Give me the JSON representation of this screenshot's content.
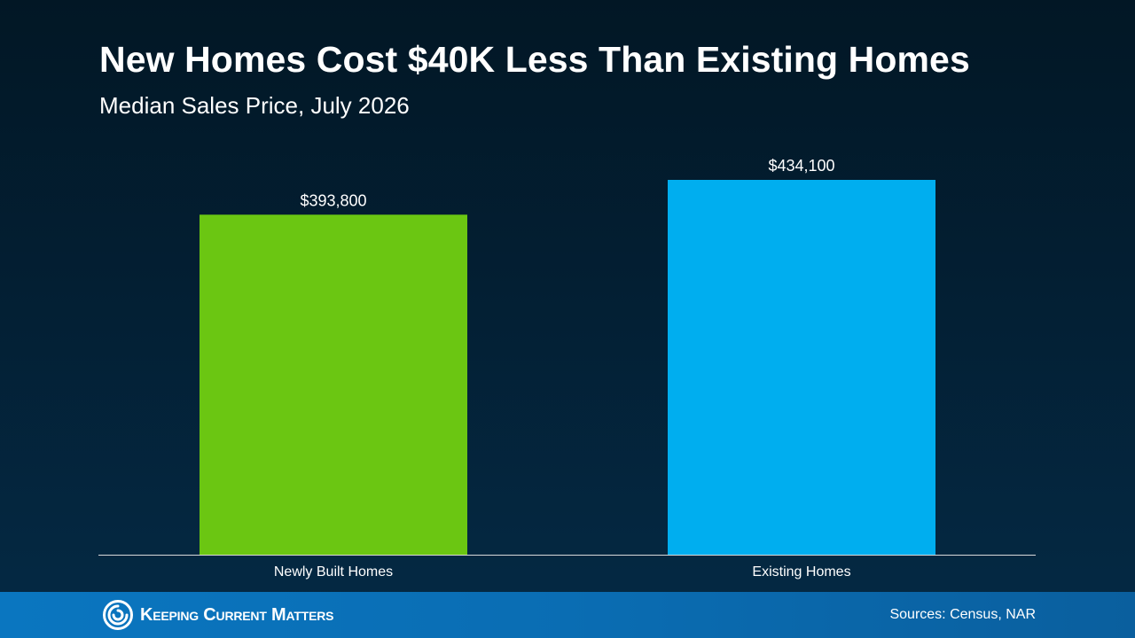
{
  "title": "New Homes Cost $40K Less Than Existing Homes",
  "subtitle": "Median Sales Price, July 2026",
  "chart_data": {
    "type": "bar",
    "title": "New Homes Cost $40K Less Than Existing Homes",
    "subtitle": "Median Sales Price, July 2026",
    "categories": [
      "Newly Built Homes",
      "Existing Homes"
    ],
    "values": [
      393800,
      434100
    ],
    "value_labels": [
      "$393,800",
      "$434,100"
    ],
    "bar_colors": [
      "#6bc612",
      "#00aeef"
    ],
    "ylim": [
      0,
      434100
    ],
    "grid": false,
    "legend": "none"
  },
  "footer": {
    "logo_text": "Keeping Current Matters",
    "sources": "Sources: Census, NAR"
  }
}
